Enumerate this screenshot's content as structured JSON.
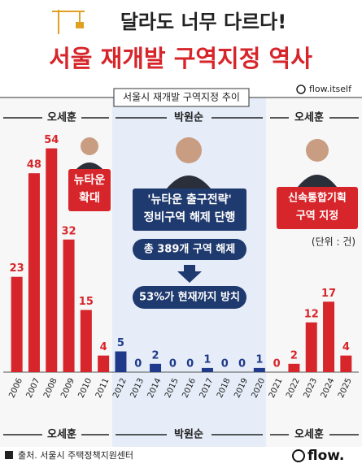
{
  "header": "달라도 너무 다르다!",
  "title": "서울 재개발 구역지정 역사",
  "brand": "flow.itself",
  "source": "출처. 서울시 주택정책지원센터",
  "logo": "flow.",
  "chart_data": {
    "type": "bar",
    "title": "서울시 재개발 구역지정 추이",
    "unit": "(단위 : 건)",
    "categories": [
      "2006",
      "2007",
      "2008",
      "2009",
      "2010",
      "2011",
      "2012",
      "2013",
      "2014",
      "2015",
      "2016",
      "2017",
      "2018",
      "2019",
      "2020",
      "2021",
      "2022",
      "2023",
      "2024",
      "2025"
    ],
    "values": [
      23,
      48,
      54,
      32,
      15,
      4,
      5,
      0,
      2,
      0,
      0,
      1,
      0,
      0,
      1,
      0,
      2,
      12,
      17,
      4
    ],
    "colors": [
      "#d7262b",
      "#d7262b",
      "#d7262b",
      "#d7262b",
      "#d7262b",
      "#d7262b",
      "#1f3a8a",
      "#1f3a8a",
      "#1f3a8a",
      "#1f3a8a",
      "#1f3a8a",
      "#1f3a8a",
      "#1f3a8a",
      "#1f3a8a",
      "#1f3a8a",
      "#d7262b",
      "#d7262b",
      "#d7262b",
      "#d7262b",
      "#d7262b"
    ],
    "periods": [
      "오세훈",
      "박원순",
      "오세훈"
    ],
    "annotations": {
      "left": [
        "뉴타운",
        "확대"
      ],
      "middle": [
        "'뉴타운 출구전략'",
        "정비구역 해제 단행"
      ],
      "right": [
        "신속통합기획",
        "구역 지정"
      ],
      "released": "총 389개 구역 해제",
      "neglected": "53%가 현재까지 방치"
    }
  }
}
